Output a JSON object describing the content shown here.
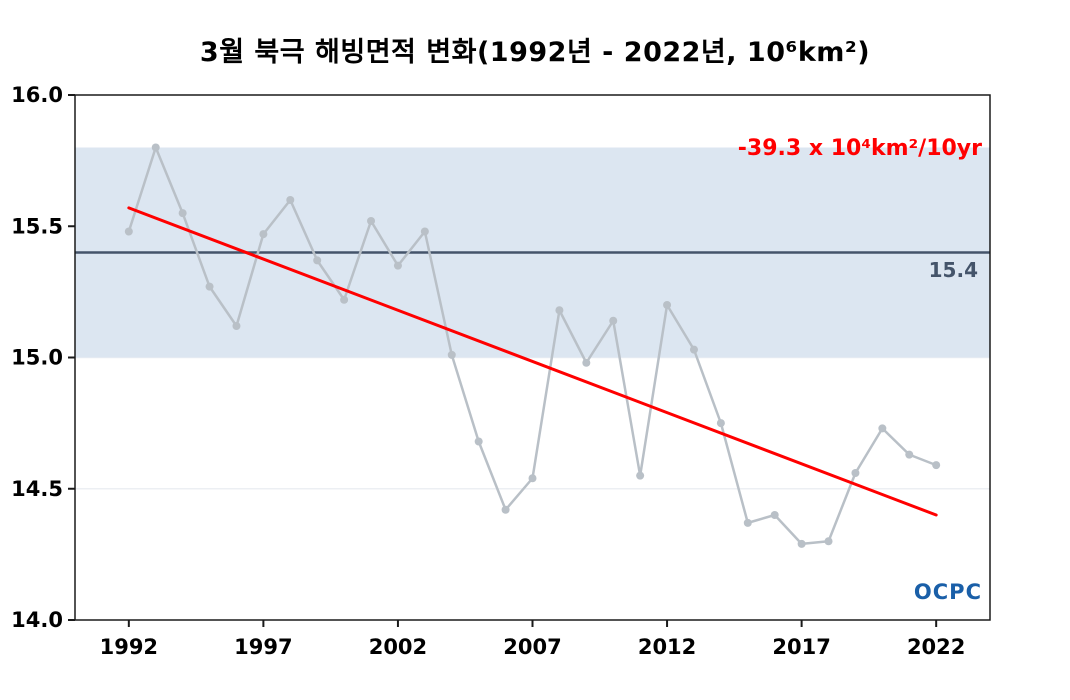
{
  "page": {
    "title": "3월 북극 해빙면적 변화(1992년 - 2022년, 10⁶km²)"
  },
  "annotation": {
    "trend_label": "-39.3 x 10⁴km²/10yr"
  },
  "reference": {
    "label": "15.4"
  },
  "logo": {
    "text": "OCPC"
  },
  "chart_data": {
    "type": "line",
    "title": "3월 북극 해빙면적 변화(1992년 - 2022년, 10⁶km²)",
    "x": [
      1992,
      1993,
      1994,
      1995,
      1996,
      1997,
      1998,
      1999,
      2000,
      2001,
      2002,
      2003,
      2004,
      2005,
      2006,
      2007,
      2008,
      2009,
      2010,
      2011,
      2012,
      2013,
      2014,
      2015,
      2016,
      2017,
      2018,
      2019,
      2020,
      2021,
      2022
    ],
    "series": [
      {
        "name": "3월 북극 해빙면적",
        "values": [
          15.48,
          15.8,
          15.55,
          15.27,
          15.12,
          15.47,
          15.6,
          15.37,
          15.22,
          15.52,
          15.35,
          15.48,
          15.01,
          14.68,
          14.42,
          14.54,
          15.18,
          14.98,
          15.14,
          14.55,
          15.2,
          15.03,
          14.75,
          14.37,
          14.4,
          14.29,
          14.3,
          14.56,
          14.73,
          14.63,
          14.59
        ],
        "color": "#b9c0c7"
      }
    ],
    "trend_line": {
      "x": [
        1992,
        2022
      ],
      "y": [
        15.57,
        14.4
      ],
      "color": "#ff0000",
      "label": "-39.3 x 10⁴km²/10yr"
    },
    "reference_line": {
      "value": 15.4,
      "label": "15.4",
      "color": "#44546a"
    },
    "band": {
      "from": 15.0,
      "to": 15.8,
      "color": "#dce6f1"
    },
    "xticks": [
      1992,
      1997,
      2002,
      2007,
      2012,
      2017,
      2022
    ],
    "yticks": [
      14.0,
      14.5,
      15.0,
      15.5,
      16.0
    ],
    "xlim": [
      1990,
      2024
    ],
    "ylim": [
      14.0,
      16.0
    ],
    "xlabel": "",
    "ylabel": "",
    "grid": "faint horizontal",
    "legend": "none"
  }
}
